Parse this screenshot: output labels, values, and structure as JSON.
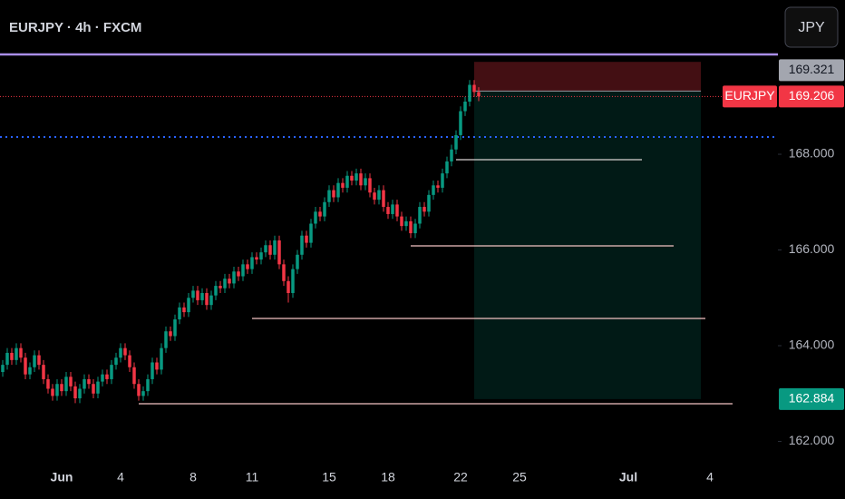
{
  "chart_data": {
    "type": "candlestick",
    "title": "EURJPY · 4h · FXCM",
    "currency_button": "JPY",
    "symbol_tag": "EURJPY",
    "up_color": "#089981",
    "down_color": "#f23645",
    "ylim": [
      161.555,
      171.223
    ],
    "yticks": [
      {
        "value": 162,
        "label": "162.000"
      },
      {
        "value": 164,
        "label": "164.000"
      },
      {
        "value": 166,
        "label": "166.000"
      },
      {
        "value": 168,
        "label": "168.000"
      }
    ],
    "categories": [
      null,
      null,
      null,
      null,
      null,
      null,
      null,
      null,
      null,
      null,
      null,
      null,
      null,
      "Jun",
      null,
      null,
      null,
      null,
      null,
      null,
      null,
      null,
      null,
      null,
      null,
      null,
      "4",
      null,
      null,
      null,
      null,
      null,
      null,
      null,
      null,
      null,
      null,
      null,
      null,
      null,
      null,
      null,
      "8",
      null,
      null,
      null,
      null,
      null,
      null,
      null,
      null,
      null,
      null,
      null,
      null,
      "11",
      null,
      null,
      null,
      null,
      null,
      null,
      null,
      null,
      null,
      null,
      null,
      null,
      null,
      null,
      null,
      null,
      "15",
      null,
      null,
      null,
      null,
      null,
      null,
      null,
      null,
      null,
      null,
      null,
      null,
      "18",
      null,
      null,
      null,
      null,
      null,
      null,
      null,
      null,
      null,
      null,
      null,
      null,
      null,
      null,
      null,
      "22",
      null,
      null,
      null,
      null,
      null,
      null,
      null,
      null,
      null,
      null,
      null,
      null,
      "25",
      null,
      null,
      null,
      null,
      null,
      null,
      null,
      null,
      null,
      null,
      null,
      null,
      null,
      null,
      null,
      null,
      null,
      null,
      null,
      null,
      null,
      null,
      null,
      "Jul",
      null,
      null,
      null,
      null,
      null,
      null,
      null,
      null,
      null,
      null,
      null,
      null,
      null,
      null,
      null,
      null,
      null,
      "4",
      null
    ],
    "open": [
      163.45,
      163.6,
      163.85,
      163.7,
      163.95,
      163.75,
      163.4,
      163.55,
      163.8,
      163.6,
      163.3,
      163.1,
      162.95,
      163.2,
      163.05,
      163.35,
      163.15,
      162.9,
      163.1,
      163.3,
      163.2,
      163.0,
      163.25,
      163.4,
      163.3,
      163.6,
      163.75,
      163.95,
      163.8,
      163.55,
      163.2,
      162.95,
      163.05,
      163.3,
      163.65,
      163.5,
      163.95,
      164.3,
      164.2,
      164.55,
      164.8,
      164.7,
      165.0,
      165.15,
      164.95,
      165.1,
      164.85,
      165.05,
      165.25,
      165.2,
      165.4,
      165.3,
      165.55,
      165.45,
      165.7,
      165.6,
      165.85,
      165.8,
      165.95,
      166.1,
      165.9,
      166.2,
      165.7,
      165.35,
      165.1,
      165.6,
      165.9,
      166.3,
      166.15,
      166.55,
      166.8,
      166.7,
      167.0,
      167.25,
      167.1,
      167.4,
      167.3,
      167.55,
      167.45,
      167.6,
      167.35,
      167.5,
      167.2,
      167.05,
      167.25,
      166.9,
      166.75,
      166.95,
      166.7,
      166.5,
      166.6,
      166.35,
      166.55,
      166.9,
      166.8,
      167.15,
      167.35,
      167.3,
      167.6,
      167.85,
      168.1,
      168.4,
      168.9,
      169.1,
      169.45,
      169.3,
      null,
      null,
      null,
      null,
      null,
      null,
      null,
      null,
      null,
      null,
      null,
      null,
      null,
      null,
      null,
      null,
      null,
      null,
      null,
      null,
      null,
      null,
      null,
      null,
      null,
      null,
      null,
      null,
      null,
      null,
      null,
      null,
      null,
      null,
      null,
      null,
      null,
      null,
      null,
      null,
      null,
      null,
      null,
      null,
      null,
      null,
      null,
      null,
      null,
      null,
      null,
      null
    ],
    "high": [
      163.7,
      163.95,
      163.95,
      164.05,
      164.05,
      163.85,
      163.65,
      163.9,
      163.9,
      163.7,
      163.4,
      163.2,
      163.3,
      163.3,
      163.45,
      163.45,
      163.25,
      163.2,
      163.4,
      163.4,
      163.3,
      163.35,
      163.5,
      163.5,
      163.7,
      163.85,
      164.05,
      164.05,
      163.9,
      163.65,
      163.3,
      163.15,
      163.4,
      163.75,
      163.75,
      164.05,
      164.4,
      164.4,
      164.65,
      164.9,
      164.9,
      165.1,
      165.25,
      165.25,
      165.2,
      165.2,
      165.15,
      165.35,
      165.35,
      165.5,
      165.5,
      165.65,
      165.65,
      165.8,
      165.8,
      165.95,
      165.95,
      166.05,
      166.2,
      166.2,
      166.3,
      166.3,
      165.8,
      165.45,
      165.7,
      166.0,
      166.4,
      166.4,
      166.65,
      166.9,
      166.9,
      167.1,
      167.35,
      167.35,
      167.5,
      167.5,
      167.65,
      167.65,
      167.7,
      167.7,
      167.6,
      167.6,
      167.3,
      167.35,
      167.35,
      167.0,
      167.05,
      167.05,
      166.8,
      166.7,
      166.7,
      166.65,
      167.0,
      167.0,
      167.25,
      167.45,
      167.45,
      167.7,
      167.95,
      168.2,
      168.5,
      169.0,
      169.2,
      169.55,
      169.55,
      169.4,
      null,
      null,
      null,
      null,
      null,
      null,
      null,
      null,
      null,
      null,
      null,
      null,
      null,
      null,
      null,
      null,
      null,
      null,
      null,
      null,
      null,
      null,
      null,
      null,
      null,
      null,
      null,
      null,
      null,
      null,
      null,
      null,
      null,
      null,
      null,
      null,
      null,
      null,
      null,
      null,
      null,
      null,
      null,
      null,
      null,
      null,
      null,
      null,
      null,
      null,
      null,
      null
    ],
    "low": [
      163.35,
      163.5,
      163.6,
      163.6,
      163.65,
      163.3,
      163.3,
      163.45,
      163.5,
      163.2,
      163.0,
      162.85,
      162.85,
      162.95,
      162.95,
      163.05,
      162.8,
      162.8,
      163.0,
      163.1,
      162.9,
      162.9,
      163.15,
      163.2,
      163.2,
      163.5,
      163.65,
      163.7,
      163.45,
      163.1,
      162.85,
      162.85,
      162.95,
      163.2,
      163.4,
      163.4,
      163.85,
      164.1,
      164.1,
      164.45,
      164.6,
      164.6,
      164.9,
      164.85,
      164.85,
      164.75,
      164.75,
      164.95,
      165.1,
      165.1,
      165.2,
      165.2,
      165.35,
      165.35,
      165.5,
      165.5,
      165.7,
      165.7,
      165.85,
      165.8,
      165.8,
      165.6,
      165.25,
      164.9,
      165.0,
      165.5,
      165.8,
      166.05,
      166.05,
      166.45,
      166.6,
      166.6,
      166.9,
      167.0,
      167.0,
      167.2,
      167.2,
      167.35,
      167.35,
      167.25,
      167.25,
      167.1,
      166.95,
      166.95,
      166.8,
      166.65,
      166.65,
      166.6,
      166.4,
      166.4,
      166.25,
      166.25,
      166.45,
      166.7,
      166.7,
      167.05,
      167.2,
      167.2,
      167.5,
      167.75,
      168.0,
      168.3,
      168.8,
      169.0,
      169.2,
      169.11,
      null,
      null,
      null,
      null,
      null,
      null,
      null,
      null,
      null,
      null,
      null,
      null,
      null,
      null,
      null,
      null,
      null,
      null,
      null,
      null,
      null,
      null,
      null,
      null,
      null,
      null,
      null,
      null,
      null,
      null,
      null,
      null,
      null,
      null,
      null,
      null,
      null,
      null,
      null,
      null,
      null,
      null,
      null,
      null,
      null,
      null,
      null,
      null,
      null,
      null,
      null,
      null
    ],
    "close": [
      163.6,
      163.85,
      163.7,
      163.95,
      163.75,
      163.4,
      163.55,
      163.8,
      163.6,
      163.3,
      163.1,
      162.95,
      163.2,
      163.05,
      163.35,
      163.15,
      162.9,
      163.1,
      163.3,
      163.2,
      163.0,
      163.25,
      163.4,
      163.3,
      163.6,
      163.75,
      163.95,
      163.8,
      163.55,
      163.2,
      162.95,
      163.05,
      163.3,
      163.65,
      163.5,
      163.95,
      164.3,
      164.2,
      164.55,
      164.8,
      164.7,
      165.0,
      165.15,
      164.95,
      165.1,
      164.85,
      165.05,
      165.25,
      165.2,
      165.4,
      165.3,
      165.55,
      165.45,
      165.7,
      165.6,
      165.85,
      165.8,
      165.95,
      166.1,
      165.9,
      166.2,
      165.7,
      165.35,
      165.1,
      165.6,
      165.9,
      166.3,
      166.15,
      166.55,
      166.8,
      166.7,
      167.0,
      167.25,
      167.1,
      167.4,
      167.3,
      167.55,
      167.45,
      167.6,
      167.35,
      167.5,
      167.2,
      167.05,
      167.25,
      166.9,
      166.75,
      166.95,
      166.7,
      166.5,
      166.6,
      166.35,
      166.55,
      166.9,
      166.8,
      167.15,
      167.35,
      167.3,
      167.6,
      167.85,
      168.1,
      168.4,
      168.9,
      169.1,
      169.45,
      169.3,
      169.21,
      null,
      null,
      null,
      null,
      null,
      null,
      null,
      null,
      null,
      null,
      null,
      null,
      null,
      null,
      null,
      null,
      null,
      null,
      null,
      null,
      null,
      null,
      null,
      null,
      null,
      null,
      null,
      null,
      null,
      null,
      null,
      null,
      null,
      null,
      null,
      null,
      null,
      null,
      null,
      null,
      null,
      null,
      null,
      null,
      null,
      null,
      null,
      null,
      null,
      null,
      null,
      null
    ],
    "hlines": [
      {
        "price": 170.085,
        "color": "#a98ee8",
        "style": "solid"
      },
      {
        "price": 168.36,
        "color": "#2962ff",
        "style": "dotted"
      }
    ],
    "current_price": 169.206,
    "levels": [
      {
        "price": 167.886,
        "from": 100,
        "to": 141,
        "color": "#d9d4d4"
      },
      {
        "price": 166.085,
        "from": 90,
        "to": 148,
        "color": "#f2c4c4"
      },
      {
        "price": 164.569,
        "from": 55,
        "to": 155,
        "color": "#f2c4c4"
      },
      {
        "price": 162.787,
        "from": 30,
        "to": 161,
        "color": "#f2c4c4"
      }
    ],
    "position": {
      "entry": 169.321,
      "stop": 169.93,
      "target": 162.884,
      "from": 104,
      "to": 154
    },
    "price_labels": [
      {
        "value": 169.321,
        "label": "169.321",
        "color": "#9598a1"
      },
      {
        "value": 169.206,
        "label": "169.206",
        "color": "#f23645"
      },
      {
        "value": 162.884,
        "label": "162.884",
        "color": "#089981"
      }
    ]
  }
}
